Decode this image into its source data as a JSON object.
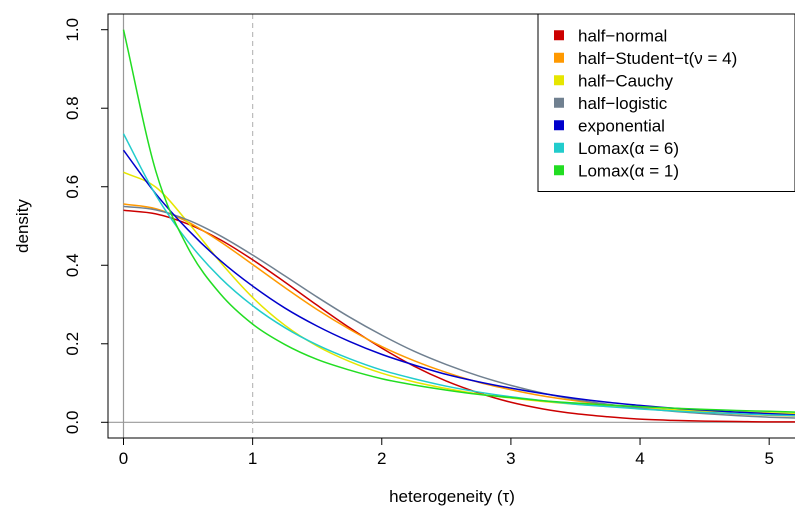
{
  "chart_data": {
    "type": "line",
    "xlabel": "heterogeneity (τ)",
    "ylabel": "density",
    "xlim": [
      -0.12,
      5.2
    ],
    "ylim": [
      -0.04,
      1.04
    ],
    "xticks": [
      0,
      1,
      2,
      3,
      4,
      5
    ],
    "xtick_labels": [
      "0",
      "1",
      "2",
      "3",
      "4",
      "5"
    ],
    "yticks": [
      0.0,
      0.2,
      0.4,
      0.6,
      0.8,
      1.0
    ],
    "ytick_labels": [
      "0.0",
      "0.2",
      "0.4",
      "0.6",
      "0.8",
      "1.0"
    ],
    "reference_lines": [
      {
        "orientation": "vertical",
        "x": 0,
        "style": "solid",
        "color": "#999999"
      },
      {
        "orientation": "horizontal",
        "y": 0,
        "style": "solid",
        "color": "#999999"
      },
      {
        "orientation": "vertical",
        "x": 1,
        "style": "dashed",
        "color": "#bbbbbb"
      }
    ],
    "legend_position": "top-right",
    "x": [
      0,
      0.25,
      0.5,
      0.75,
      1,
      1.25,
      1.5,
      1.75,
      2,
      2.25,
      2.5,
      2.75,
      3,
      3.25,
      3.5,
      3.75,
      4,
      4.25,
      4.5,
      4.75,
      5,
      5.2
    ],
    "series": [
      {
        "name": "half−normal",
        "color": "#cc0000",
        "values": [
          0.54,
          0.531,
          0.505,
          0.465,
          0.414,
          0.357,
          0.298,
          0.241,
          0.189,
          0.143,
          0.105,
          0.075,
          0.051,
          0.034,
          0.022,
          0.014,
          0.008,
          0.005,
          0.003,
          0.002,
          0.001,
          0.001
        ]
      },
      {
        "name": "half−Student−t(ν = 4)",
        "color": "#ff9900",
        "values": [
          0.556,
          0.544,
          0.51,
          0.46,
          0.402,
          0.343,
          0.287,
          0.237,
          0.193,
          0.157,
          0.127,
          0.102,
          0.083,
          0.067,
          0.055,
          0.045,
          0.037,
          0.031,
          0.026,
          0.021,
          0.018,
          0.016
        ]
      },
      {
        "name": "half−Cauchy",
        "color": "#e6e600",
        "values": [
          0.637,
          0.599,
          0.509,
          0.408,
          0.318,
          0.247,
          0.194,
          0.155,
          0.125,
          0.103,
          0.086,
          0.072,
          0.062,
          0.053,
          0.046,
          0.041,
          0.036,
          0.032,
          0.029,
          0.026,
          0.024,
          0.022
        ]
      },
      {
        "name": "half−logistic",
        "color": "#708090",
        "values": [
          0.55,
          0.541,
          0.515,
          0.475,
          0.426,
          0.373,
          0.319,
          0.268,
          0.222,
          0.181,
          0.147,
          0.118,
          0.094,
          0.074,
          0.058,
          0.046,
          0.036,
          0.028,
          0.022,
          0.017,
          0.013,
          0.011
        ]
      },
      {
        "name": "exponential",
        "color": "#0000cc",
        "values": [
          0.693,
          0.582,
          0.49,
          0.412,
          0.347,
          0.291,
          0.245,
          0.206,
          0.173,
          0.146,
          0.122,
          0.103,
          0.087,
          0.073,
          0.061,
          0.051,
          0.043,
          0.036,
          0.031,
          0.026,
          0.022,
          0.019
        ]
      },
      {
        "name": "Lomax(α = 6)",
        "color": "#22cccc",
        "values": [
          0.735,
          0.579,
          0.46,
          0.368,
          0.297,
          0.241,
          0.197,
          0.162,
          0.133,
          0.111,
          0.092,
          0.077,
          0.065,
          0.055,
          0.046,
          0.04,
          0.034,
          0.029,
          0.025,
          0.022,
          0.019,
          0.017
        ]
      },
      {
        "name": "Lomax(α = 1)",
        "color": "#22dd22",
        "values": [
          1.0,
          0.64,
          0.444,
          0.327,
          0.25,
          0.198,
          0.16,
          0.133,
          0.111,
          0.095,
          0.082,
          0.071,
          0.063,
          0.055,
          0.049,
          0.044,
          0.04,
          0.036,
          0.033,
          0.03,
          0.028,
          0.026
        ]
      }
    ]
  }
}
